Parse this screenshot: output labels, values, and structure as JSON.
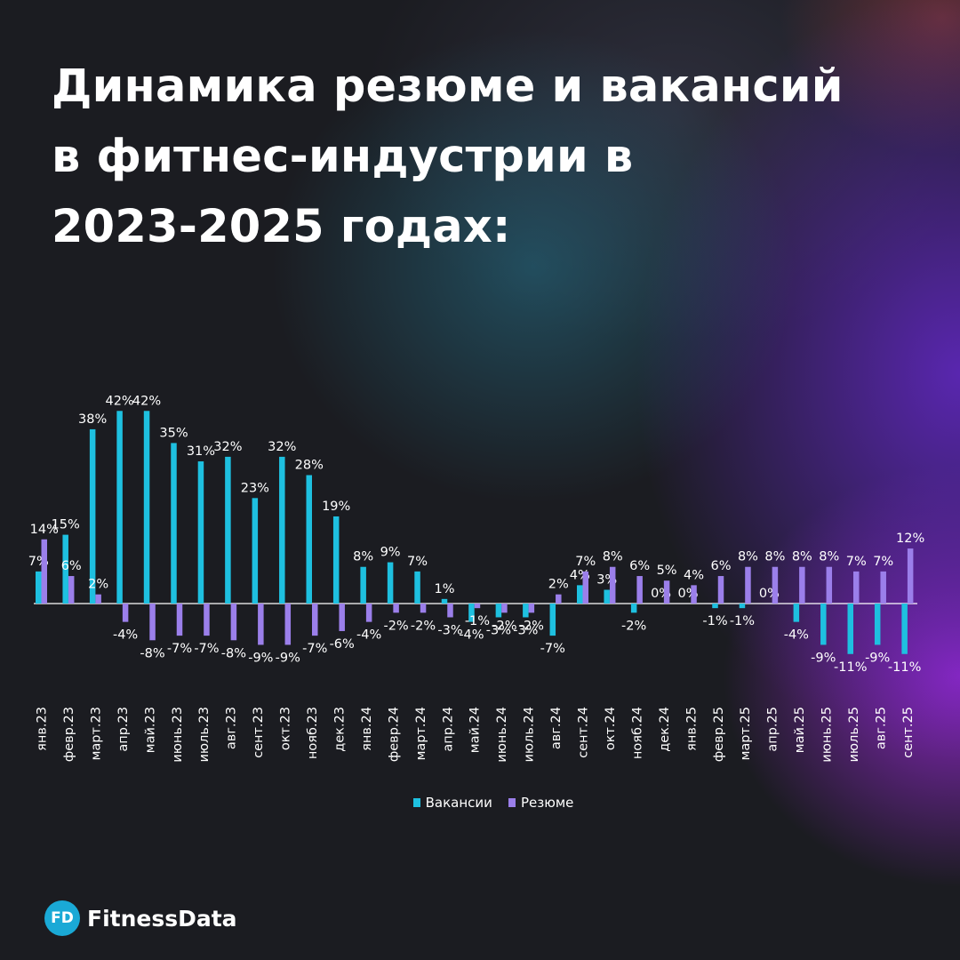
{
  "title": "Динамика резюме и вакансий\nв фитнес-индустрии в\n2023-2025 годах:",
  "brand": {
    "badge": "FD",
    "name": "FitnessData"
  },
  "colors": {
    "vacancies": "#1ec0e0",
    "resumes": "#9b7fea",
    "background": "#1b1c21",
    "brand": "#1aa9d6"
  },
  "chart_data": {
    "type": "bar",
    "categories": [
      "янв.23",
      "февр.23",
      "март.23",
      "апр.23",
      "май.23",
      "июнь.23",
      "июль.23",
      "авг.23",
      "сент.23",
      "окт.23",
      "нояб.23",
      "дек.23",
      "янв.24",
      "февр.24",
      "март.24",
      "апр.24",
      "май.24",
      "июнь.24",
      "июль.24",
      "авг.24",
      "сент.24",
      "окт.24",
      "нояб.24",
      "дек.24",
      "янв.25",
      "февр.25",
      "март.25",
      "апр.25",
      "май.25",
      "июнь.25",
      "июль.25",
      "авг.25",
      "сент.25"
    ],
    "series": [
      {
        "name": "Вакансии",
        "color": "#1ec0e0",
        "values": [
          7,
          15,
          38,
          42,
          42,
          35,
          31,
          32,
          23,
          32,
          28,
          19,
          8,
          9,
          7,
          1,
          -4,
          -3,
          -3,
          -7,
          4,
          3,
          -2,
          0,
          0,
          -1,
          -1,
          0,
          -4,
          -9,
          -11,
          -9,
          -11
        ]
      },
      {
        "name": "Резюме",
        "color": "#9b7fea",
        "values": [
          14,
          6,
          2,
          -4,
          -8,
          -7,
          -7,
          -8,
          -9,
          -9,
          -7,
          -6,
          -4,
          -2,
          -2,
          -3,
          -1,
          -2,
          -2,
          2,
          7,
          8,
          6,
          5,
          4,
          6,
          8,
          8,
          8,
          8,
          7,
          7,
          12
        ]
      }
    ],
    "value_suffix": "%",
    "legend": [
      "Вакансии",
      "Резюме"
    ],
    "legend_position": "bottom",
    "grid": false,
    "zero_line": true
  }
}
